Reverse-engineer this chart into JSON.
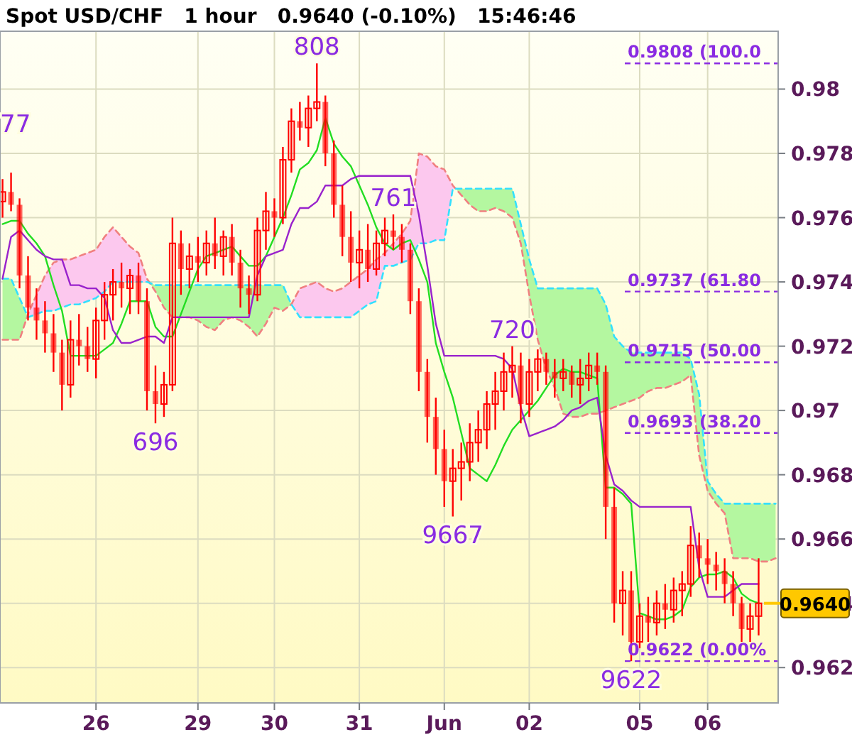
{
  "chart_data": {
    "type": "candlestick",
    "title": "Spot USD/CHF   1 hour   0.9640 (-0.10%)   15:46:46",
    "categories": [
      null,
      null,
      null,
      null,
      null,
      null,
      null,
      null,
      null,
      null,
      null,
      "26",
      null,
      null,
      null,
      null,
      null,
      null,
      null,
      null,
      null,
      null,
      null,
      "29",
      null,
      null,
      null,
      null,
      null,
      null,
      null,
      null,
      "30",
      null,
      null,
      null,
      null,
      null,
      null,
      null,
      null,
      null,
      "31",
      null,
      null,
      null,
      null,
      null,
      null,
      null,
      null,
      null,
      "Jun",
      null,
      null,
      null,
      null,
      null,
      null,
      null,
      null,
      null,
      "02",
      null,
      null,
      null,
      null,
      null,
      null,
      null,
      null,
      null,
      null,
      null,
      null,
      "05",
      null,
      null,
      null,
      null,
      null,
      null,
      null,
      "06",
      null,
      null,
      null,
      null,
      null,
      null,
      null,
      null
    ],
    "ohlc": [
      [
        0.9765,
        0.9772,
        0.976,
        0.9768
      ],
      [
        0.9768,
        0.9774,
        0.9762,
        0.9764
      ],
      [
        0.9764,
        0.9766,
        0.9738,
        0.9742
      ],
      [
        0.9742,
        0.9748,
        0.9728,
        0.9732
      ],
      [
        0.9732,
        0.9738,
        0.9722,
        0.9728
      ],
      [
        0.9728,
        0.9734,
        0.9718,
        0.9724
      ],
      [
        0.9724,
        0.973,
        0.9712,
        0.9718
      ],
      [
        0.9718,
        0.9722,
        0.97,
        0.9708
      ],
      [
        0.9708,
        0.9728,
        0.9704,
        0.9722
      ],
      [
        0.9722,
        0.973,
        0.9714,
        0.972
      ],
      [
        0.972,
        0.9726,
        0.9712,
        0.9716
      ],
      [
        0.9716,
        0.9732,
        0.971,
        0.9728
      ],
      [
        0.9728,
        0.974,
        0.9722,
        0.9736
      ],
      [
        0.9736,
        0.9744,
        0.9728,
        0.974
      ],
      [
        0.974,
        0.9746,
        0.9732,
        0.9738
      ],
      [
        0.9738,
        0.9744,
        0.973,
        0.9742
      ],
      [
        0.9742,
        0.9746,
        0.973,
        0.9734
      ],
      [
        0.9734,
        0.9738,
        0.97,
        0.9706
      ],
      [
        0.9706,
        0.9714,
        0.9696,
        0.9702
      ],
      [
        0.9702,
        0.9712,
        0.9698,
        0.9708
      ],
      [
        0.9708,
        0.976,
        0.9706,
        0.9752
      ],
      [
        0.9752,
        0.9756,
        0.9736,
        0.9744
      ],
      [
        0.9744,
        0.9752,
        0.9738,
        0.9748
      ],
      [
        0.9748,
        0.9754,
        0.974,
        0.9746
      ],
      [
        0.9746,
        0.9756,
        0.9742,
        0.9752
      ],
      [
        0.9752,
        0.976,
        0.9744,
        0.9748
      ],
      [
        0.9748,
        0.9756,
        0.9742,
        0.9754
      ],
      [
        0.9754,
        0.9758,
        0.9742,
        0.9746
      ],
      [
        0.9746,
        0.975,
        0.9732,
        0.9738
      ],
      [
        0.9738,
        0.9742,
        0.973,
        0.9736
      ],
      [
        0.9736,
        0.976,
        0.9734,
        0.9756
      ],
      [
        0.9756,
        0.9768,
        0.975,
        0.9762
      ],
      [
        0.9762,
        0.9766,
        0.9754,
        0.976
      ],
      [
        0.976,
        0.9782,
        0.9758,
        0.9778
      ],
      [
        0.9778,
        0.9794,
        0.9774,
        0.979
      ],
      [
        0.979,
        0.9796,
        0.9784,
        0.9788
      ],
      [
        0.9788,
        0.9798,
        0.9782,
        0.9794
      ],
      [
        0.9794,
        0.9808,
        0.979,
        0.9796
      ],
      [
        0.9796,
        0.9798,
        0.9776,
        0.978
      ],
      [
        0.978,
        0.9784,
        0.976,
        0.9764
      ],
      [
        0.9764,
        0.977,
        0.9748,
        0.9754
      ],
      [
        0.9754,
        0.9762,
        0.974,
        0.9746
      ],
      [
        0.9746,
        0.9756,
        0.9738,
        0.975
      ],
      [
        0.975,
        0.9758,
        0.974,
        0.9744
      ],
      [
        0.9744,
        0.9756,
        0.9742,
        0.9752
      ],
      [
        0.9752,
        0.976,
        0.9748,
        0.9756
      ],
      [
        0.9756,
        0.9761,
        0.975,
        0.9754
      ],
      [
        0.9754,
        0.9758,
        0.9746,
        0.975
      ],
      [
        0.975,
        0.9752,
        0.973,
        0.9734
      ],
      [
        0.9734,
        0.9738,
        0.9706,
        0.9712
      ],
      [
        0.9712,
        0.9716,
        0.969,
        0.9698
      ],
      [
        0.9698,
        0.9704,
        0.968,
        0.9688
      ],
      [
        0.9688,
        0.9694,
        0.967,
        0.9678
      ],
      [
        0.9678,
        0.9688,
        0.9667,
        0.9682
      ],
      [
        0.9682,
        0.969,
        0.9672,
        0.9684
      ],
      [
        0.9684,
        0.9696,
        0.9678,
        0.969
      ],
      [
        0.969,
        0.97,
        0.9684,
        0.9694
      ],
      [
        0.9694,
        0.9706,
        0.9688,
        0.9702
      ],
      [
        0.9702,
        0.9712,
        0.9694,
        0.9706
      ],
      [
        0.9706,
        0.9718,
        0.97,
        0.9712
      ],
      [
        0.9712,
        0.972,
        0.9704,
        0.9714
      ],
      [
        0.9714,
        0.9718,
        0.9696,
        0.9702
      ],
      [
        0.9702,
        0.9716,
        0.9698,
        0.9712
      ],
      [
        0.9712,
        0.9719,
        0.9706,
        0.9716
      ],
      [
        0.9716,
        0.9718,
        0.9708,
        0.9712
      ],
      [
        0.9712,
        0.9716,
        0.9704,
        0.971
      ],
      [
        0.971,
        0.9716,
        0.9706,
        0.9712
      ],
      [
        0.9712,
        0.9714,
        0.9704,
        0.9708
      ],
      [
        0.9708,
        0.9716,
        0.9702,
        0.971
      ],
      [
        0.971,
        0.9718,
        0.9706,
        0.9714
      ],
      [
        0.9714,
        0.9718,
        0.9708,
        0.9712
      ],
      [
        0.9712,
        0.9714,
        0.966,
        0.967
      ],
      [
        0.967,
        0.9676,
        0.9634,
        0.964
      ],
      [
        0.964,
        0.965,
        0.963,
        0.9644
      ],
      [
        0.9644,
        0.965,
        0.9622,
        0.9628
      ],
      [
        0.9628,
        0.964,
        0.9626,
        0.9636
      ],
      [
        0.9636,
        0.9642,
        0.9628,
        0.9634
      ],
      [
        0.9634,
        0.9644,
        0.963,
        0.964
      ],
      [
        0.964,
        0.9646,
        0.9632,
        0.9638
      ],
      [
        0.9638,
        0.9648,
        0.9634,
        0.9644
      ],
      [
        0.9644,
        0.965,
        0.9636,
        0.9646
      ],
      [
        0.9646,
        0.9664,
        0.9642,
        0.9658
      ],
      [
        0.9658,
        0.9662,
        0.9648,
        0.9654
      ],
      [
        0.9654,
        0.966,
        0.9646,
        0.9652
      ],
      [
        0.9652,
        0.9656,
        0.9644,
        0.965
      ],
      [
        0.965,
        0.9654,
        0.964,
        0.9646
      ],
      [
        0.9646,
        0.965,
        0.9636,
        0.964
      ],
      [
        0.964,
        0.9642,
        0.9628,
        0.9632
      ],
      [
        0.9632,
        0.964,
        0.9628,
        0.9636
      ],
      [
        0.9636,
        0.9654,
        0.963,
        0.964
      ],
      null,
      null
    ],
    "color": "#ff0000",
    "series": [
      {
        "type": "line",
        "color": "#f08080",
        "line_style": "dashed",
        "values": [
          0.9722,
          0.9722,
          0.9722,
          0.973,
          0.9736,
          0.9742,
          0.9746,
          0.9747,
          0.9747,
          0.9748,
          0.9749,
          0.975,
          0.9754,
          0.9757,
          0.9754,
          0.9751,
          0.9749,
          0.9741,
          0.9737,
          0.9732,
          0.9729,
          0.9729,
          0.9729,
          0.9728,
          0.9726,
          0.9725,
          0.9728,
          0.9729,
          0.9728,
          0.9726,
          0.9723,
          0.9727,
          0.9732,
          0.9731,
          0.9733,
          0.9738,
          0.9739,
          0.974,
          0.9738,
          0.9737,
          0.9738,
          0.974,
          0.9742,
          0.9744,
          0.9747,
          0.9749,
          0.9752,
          0.9755,
          0.9759,
          0.978,
          0.9779,
          0.9776,
          0.9775,
          0.977,
          0.9767,
          0.9764,
          0.9762,
          0.9762,
          0.9763,
          0.9762,
          0.976,
          0.9752,
          0.9736,
          0.9722,
          0.9713,
          0.9707,
          0.9699,
          0.9698,
          0.9698,
          0.9699,
          0.9699,
          0.97,
          0.9701,
          0.9702,
          0.9703,
          0.9704,
          0.9706,
          0.9707,
          0.9707,
          0.9708,
          0.9709,
          0.9711,
          0.9686,
          0.9675,
          0.9671,
          0.9668,
          0.9654,
          0.9654,
          0.9654,
          0.9653,
          0.9653,
          0.9654
        ]
      },
      {
        "type": "line",
        "color": "#33e0ff",
        "line_style": "dashed",
        "values": [
          0.9741,
          0.9741,
          0.9735,
          0.9729,
          0.973,
          0.9731,
          0.9731,
          0.9732,
          0.9733,
          0.9733,
          0.9734,
          0.9735,
          0.9737,
          0.974,
          0.974,
          0.974,
          0.974,
          0.974,
          0.9739,
          0.9739,
          0.9739,
          0.9739,
          0.9739,
          0.9739,
          0.9739,
          0.9739,
          0.9739,
          0.9739,
          0.9739,
          0.9739,
          0.9739,
          0.9739,
          0.9739,
          0.9739,
          0.9733,
          0.9729,
          0.9729,
          0.9729,
          0.9729,
          0.9729,
          0.9729,
          0.9729,
          0.9731,
          0.9733,
          0.9734,
          0.9745,
          0.9745,
          0.9746,
          0.9747,
          0.9752,
          0.9752,
          0.9753,
          0.9753,
          0.9769,
          0.9769,
          0.9769,
          0.9769,
          0.9769,
          0.9769,
          0.9769,
          0.9769,
          0.9758,
          0.9747,
          0.9738,
          0.9738,
          0.9738,
          0.9738,
          0.9738,
          0.9738,
          0.9738,
          0.9738,
          0.9733,
          0.9723,
          0.972,
          0.9718,
          0.9718,
          0.9718,
          0.9718,
          0.9718,
          0.9718,
          0.9718,
          0.9716,
          0.9705,
          0.9678,
          0.9674,
          0.9671,
          0.9671,
          0.9671,
          0.9671,
          0.9671,
          0.9671,
          0.9671
        ]
      },
      {
        "type": "line",
        "color": "#22dd22",
        "values": [
          0.9758,
          0.9759,
          0.9759,
          0.9755,
          0.9752,
          0.9748,
          0.9739,
          0.9731,
          0.9717,
          0.9717,
          0.9717,
          0.9717,
          0.9719,
          0.9721,
          0.9727,
          0.9734,
          0.9734,
          0.9734,
          0.9726,
          0.9723,
          0.9723,
          0.973,
          0.9737,
          0.9744,
          0.9748,
          0.9749,
          0.975,
          0.9751,
          0.9748,
          0.9745,
          0.9745,
          0.9748,
          0.9754,
          0.976,
          0.9767,
          0.9775,
          0.9777,
          0.9781,
          0.9791,
          0.9783,
          0.9779,
          0.9776,
          0.977,
          0.9764,
          0.9757,
          0.9752,
          0.975,
          0.9752,
          0.9753,
          0.9747,
          0.974,
          0.9721,
          0.9712,
          0.9704,
          0.9693,
          0.9682,
          0.968,
          0.9678,
          0.9683,
          0.9689,
          0.9694,
          0.9697,
          0.97,
          0.9703,
          0.9707,
          0.9711,
          0.9713,
          0.9712,
          0.9712,
          0.9711,
          0.971,
          0.9676,
          0.9676,
          0.9674,
          0.9671,
          0.9637,
          0.9636,
          0.9635,
          0.9635,
          0.9636,
          0.9638,
          0.9645,
          0.9648,
          0.9649,
          0.9649,
          0.965,
          0.9648,
          0.9643,
          0.9641,
          0.964,
          null,
          null
        ]
      },
      {
        "type": "line",
        "color": "#9922cc",
        "values": [
          0.9741,
          0.9754,
          0.9756,
          0.9753,
          0.975,
          0.9748,
          0.9747,
          0.9747,
          0.9739,
          0.9739,
          0.9738,
          0.9738,
          0.9735,
          0.9725,
          0.9721,
          0.9721,
          0.9722,
          0.9723,
          0.9723,
          0.9721,
          0.9729,
          0.9729,
          0.9729,
          0.9729,
          0.9729,
          0.9729,
          0.9729,
          0.9729,
          0.9729,
          0.9729,
          0.9742,
          0.9748,
          0.9749,
          0.975,
          0.9758,
          0.9763,
          0.9763,
          0.9765,
          0.977,
          0.977,
          0.977,
          0.9772,
          0.9773,
          0.9773,
          0.9773,
          0.9773,
          0.9773,
          0.9773,
          0.9773,
          0.9761,
          0.9745,
          0.9727,
          0.9717,
          0.9717,
          0.9717,
          0.9717,
          0.9717,
          0.9717,
          0.9717,
          0.9716,
          0.9713,
          0.9701,
          0.9692,
          0.9693,
          0.9694,
          0.9695,
          0.9697,
          0.97,
          0.9701,
          0.9703,
          0.9704,
          0.9686,
          0.9677,
          0.9675,
          0.9672,
          0.967,
          0.967,
          0.967,
          0.967,
          0.967,
          0.967,
          0.967,
          0.9651,
          0.9642,
          0.9642,
          0.9642,
          0.9644,
          0.9646,
          0.9646,
          0.9646,
          null,
          null
        ]
      }
    ],
    "ylim": [
      0.9609,
      0.9818
    ],
    "yticks": [
      0.962,
      0.964,
      0.966,
      0.968,
      0.97,
      0.972,
      0.974,
      0.976,
      0.978,
      0.98
    ],
    "grid": true,
    "ref_lines": [
      {
        "axis": "y",
        "value": 0.9808,
        "label": "0.9808 (100.0",
        "color": "#8a2be2",
        "line_style": "dashed"
      },
      {
        "axis": "y",
        "value": 0.9737,
        "label": "0.9737 (61.80",
        "color": "#8a2be2",
        "line_style": "dashed"
      },
      {
        "axis": "y",
        "value": 0.9715,
        "label": "0.9715 (50.00",
        "color": "#8a2be2",
        "line_style": "dashed"
      },
      {
        "axis": "y",
        "value": 0.9693,
        "label": "0.9693 (38.20",
        "color": "#8a2be2",
        "line_style": "dashed"
      },
      {
        "axis": "y",
        "value": 0.9622,
        "label": "0.9622 (0.00%",
        "color": "#8a2be2",
        "line_style": "dashed"
      },
      {
        "axis": "y",
        "value": 0.964,
        "label": "0.9640",
        "color": "#ffc800"
      }
    ],
    "annotations": [
      "77",
      {
        "text": "808",
        "y": 0.9808
      },
      {
        "text": "761",
        "y": 0.9761
      },
      {
        "text": "696",
        "y": 0.9696
      },
      {
        "text": "720",
        "y": 0.972
      },
      {
        "text": "9667",
        "y": 0.9667
      },
      {
        "text": "9622",
        "y": 0.9622
      }
    ]
  }
}
